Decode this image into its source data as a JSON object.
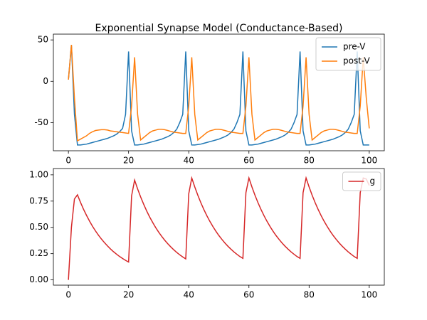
{
  "chart_data": [
    {
      "type": "line",
      "title": "Exponential Synapse Model (Conductance-Based)",
      "x": [
        0,
        1,
        2,
        3,
        4,
        5,
        6,
        7,
        8,
        9,
        10,
        11,
        12,
        13,
        14,
        15,
        16,
        17,
        18,
        19,
        20,
        21,
        22,
        23,
        24,
        25,
        26,
        27,
        28,
        29,
        30,
        31,
        32,
        33,
        34,
        35,
        36,
        37,
        38,
        39,
        40,
        41,
        42,
        43,
        44,
        45,
        46,
        47,
        48,
        49,
        50,
        51,
        52,
        53,
        54,
        55,
        56,
        57,
        58,
        59,
        60,
        61,
        62,
        63,
        64,
        65,
        66,
        67,
        68,
        69,
        70,
        71,
        72,
        73,
        74,
        75,
        76,
        77,
        78,
        79,
        80,
        81,
        82,
        83,
        84,
        85,
        86,
        87,
        88,
        89,
        90,
        91,
        92,
        93,
        94,
        95,
        96,
        97,
        98,
        99,
        100
      ],
      "series": [
        {
          "name": "pre-V",
          "color": "#1f77b4",
          "values": [
            2,
            44,
            -40,
            -77,
            -77,
            -76.5,
            -76,
            -75,
            -74,
            -73,
            -72,
            -71,
            -70,
            -69,
            -67.5,
            -66,
            -64,
            -61,
            -57,
            -40,
            36,
            -60,
            -77,
            -77,
            -76.5,
            -76,
            -75,
            -74,
            -73,
            -72,
            -71,
            -70,
            -68.5,
            -67,
            -65,
            -62,
            -58,
            -50,
            -40,
            36,
            -60,
            -77,
            -77,
            -76.5,
            -76,
            -75,
            -74,
            -73,
            -72,
            -71,
            -70,
            -68.5,
            -67,
            -65,
            -62,
            -58,
            -50,
            -40,
            36,
            -60,
            -77,
            -77,
            -76.5,
            -76,
            -75,
            -74,
            -73,
            -72,
            -71,
            -70,
            -68.5,
            -67,
            -65,
            -62,
            -58,
            -50,
            -40,
            36,
            -60,
            -77,
            -77,
            -76.5,
            -76,
            -75,
            -74,
            -73,
            -72,
            -71,
            -70,
            -68.5,
            -67,
            -65,
            -62,
            -58,
            -50,
            -40,
            36,
            -60,
            -77,
            -77,
            -77
          ]
        },
        {
          "name": "post-V",
          "color": "#ff7f0e",
          "values": [
            2,
            44,
            -20,
            -72,
            -70,
            -68,
            -66,
            -63,
            -61,
            -59.5,
            -59,
            -58.5,
            -58.5,
            -59,
            -60,
            -60.5,
            -61,
            -61.5,
            -62,
            -62.5,
            -63,
            -30,
            29,
            -40,
            -71,
            -68,
            -65,
            -62,
            -60,
            -59,
            -58,
            -58,
            -58.5,
            -59.5,
            -60.5,
            -61.5,
            -62,
            -62.5,
            -63,
            -63,
            -30,
            29,
            -40,
            -71,
            -68,
            -65,
            -62,
            -60,
            -59,
            -58,
            -58,
            -58.5,
            -59.5,
            -60.5,
            -61.5,
            -62,
            -62.5,
            -63,
            -63,
            -30,
            29,
            -40,
            -71,
            -68,
            -65,
            -62,
            -60,
            -59,
            -58,
            -58,
            -58.5,
            -59.5,
            -60.5,
            -61.5,
            -62,
            -62.5,
            -63,
            -63,
            -30,
            29,
            -40,
            -71,
            -68,
            -65,
            -62,
            -60,
            -59,
            -58,
            -58,
            -58.5,
            -59.5,
            -60.5,
            -61.5,
            -62,
            -62.5,
            -63,
            -63,
            -30,
            29,
            -20,
            -57
          ]
        }
      ],
      "xlim": [
        -5,
        105
      ],
      "xticks": [
        0,
        20,
        40,
        60,
        80,
        100
      ],
      "ylim": [
        -84,
        57
      ],
      "yticks": [
        -50,
        0,
        50
      ],
      "legend": "upper right"
    },
    {
      "type": "line",
      "x": [
        0,
        1,
        2,
        3,
        4,
        5,
        6,
        7,
        8,
        9,
        10,
        11,
        12,
        13,
        14,
        15,
        16,
        17,
        18,
        19,
        20,
        21,
        22,
        23,
        24,
        25,
        26,
        27,
        28,
        29,
        30,
        31,
        32,
        33,
        34,
        35,
        36,
        37,
        38,
        39,
        40,
        41,
        42,
        43,
        44,
        45,
        46,
        47,
        48,
        49,
        50,
        51,
        52,
        53,
        54,
        55,
        56,
        57,
        58,
        59,
        60,
        61,
        62,
        63,
        64,
        65,
        66,
        67,
        68,
        69,
        70,
        71,
        72,
        73,
        74,
        75,
        76,
        77,
        78,
        79,
        80,
        81,
        82,
        83,
        84,
        85,
        86,
        87,
        88,
        89,
        90,
        91,
        92,
        93,
        94,
        95,
        96,
        97,
        98,
        99,
        100
      ],
      "series": [
        {
          "name": "g",
          "color": "#d62728",
          "values": [
            0,
            0.5,
            0.77,
            0.81,
            0.739,
            0.674,
            0.615,
            0.561,
            0.511,
            0.466,
            0.425,
            0.388,
            0.354,
            0.323,
            0.294,
            0.268,
            0.245,
            0.223,
            0.204,
            0.186,
            0.17,
            0.8,
            0.95,
            0.866,
            0.79,
            0.721,
            0.657,
            0.599,
            0.547,
            0.498,
            0.455,
            0.415,
            0.378,
            0.345,
            0.315,
            0.287,
            0.262,
            0.239,
            0.218,
            0.2,
            0.82,
            0.97,
            0.885,
            0.807,
            0.736,
            0.671,
            0.612,
            0.558,
            0.509,
            0.464,
            0.423,
            0.386,
            0.352,
            0.321,
            0.293,
            0.267,
            0.244,
            0.222,
            0.205,
            0.83,
            0.97,
            0.885,
            0.807,
            0.736,
            0.671,
            0.612,
            0.558,
            0.509,
            0.464,
            0.423,
            0.386,
            0.352,
            0.321,
            0.293,
            0.267,
            0.244,
            0.222,
            0.205,
            0.83,
            0.97,
            0.885,
            0.807,
            0.736,
            0.671,
            0.612,
            0.558,
            0.509,
            0.464,
            0.423,
            0.386,
            0.352,
            0.321,
            0.293,
            0.267,
            0.244,
            0.222,
            0.205,
            0.83,
            0.97,
            0.96,
            0.9
          ]
        }
      ],
      "xlim": [
        -5,
        105
      ],
      "xticks": [
        0,
        20,
        40,
        60,
        80,
        100
      ],
      "ylim": [
        -0.05,
        1.06
      ],
      "yticks": [
        {
          "value": 0,
          "label": "0.00"
        },
        {
          "value": 0.25,
          "label": "0.25"
        },
        {
          "value": 0.5,
          "label": "0.50"
        },
        {
          "value": 0.75,
          "label": "0.75"
        },
        {
          "value": 1,
          "label": "1.00"
        }
      ],
      "legend": "upper right"
    }
  ]
}
